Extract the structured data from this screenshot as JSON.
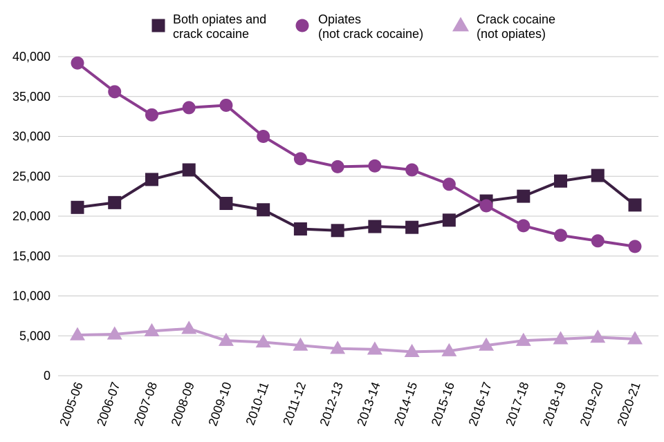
{
  "chart_data": {
    "type": "line",
    "title": "",
    "xlabel": "",
    "ylabel": "",
    "categories": [
      "2005-06",
      "2006-07",
      "2007-08",
      "2008-09",
      "2009-10",
      "2010-11",
      "2011-12",
      "2012-13",
      "2013-14",
      "2014-15",
      "2015-16",
      "2016-17",
      "2017-18",
      "2018-19",
      "2019-20",
      "2020-21"
    ],
    "ylim": [
      0,
      40000
    ],
    "yticks": [
      0,
      5000,
      10000,
      15000,
      20000,
      25000,
      30000,
      35000,
      40000
    ],
    "ytick_labels": [
      "0",
      "5,000",
      "10,000",
      "15,000",
      "20,000",
      "25,000",
      "30,000",
      "35,000",
      "40,000"
    ],
    "grid": "horizontal",
    "legend_position": "top",
    "series": [
      {
        "name_lines": [
          "Both opiates and",
          "crack cocaine"
        ],
        "marker": "square",
        "color": "#3b1f42",
        "values": [
          21100,
          21700,
          24600,
          25800,
          21600,
          20800,
          18400,
          18200,
          18700,
          18600,
          19500,
          21900,
          22500,
          24400,
          25100,
          21400
        ]
      },
      {
        "name_lines": [
          "Opiates",
          "(not crack cocaine)"
        ],
        "marker": "circle",
        "color": "#8b3c8f",
        "values": [
          39200,
          35600,
          32700,
          33600,
          33900,
          30000,
          27200,
          26200,
          26300,
          25800,
          24000,
          21300,
          18800,
          17600,
          16900,
          16200
        ]
      },
      {
        "name_lines": [
          "Crack cocaine",
          "(not opiates)"
        ],
        "marker": "triangle",
        "color": "#c299cc",
        "values": [
          5100,
          5200,
          5600,
          5900,
          4400,
          4200,
          3800,
          3400,
          3300,
          3000,
          3100,
          3800,
          4400,
          4600,
          4800,
          4600
        ]
      }
    ]
  }
}
